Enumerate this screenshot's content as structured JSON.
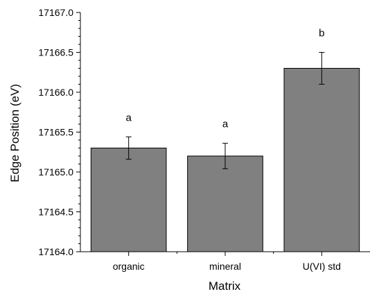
{
  "chart_data": {
    "type": "bar",
    "categories": [
      "organic",
      "mineral",
      "U(VI) std"
    ],
    "values": [
      17165.3,
      17165.2,
      17166.3
    ],
    "errors": [
      0.14,
      0.16,
      0.2
    ],
    "annotations": [
      "a",
      "a",
      "b"
    ],
    "xlabel": "Matrix",
    "ylabel": "Edge Position (eV)",
    "ylim": [
      17164.0,
      17167.0
    ],
    "yticks": [
      "17164.0",
      "17164.5",
      "17165.0",
      "17165.5",
      "17166.0",
      "17166.5",
      "17167.0"
    ],
    "grid": false,
    "colors": {
      "bar": "#808080",
      "bar_edge": "#000000",
      "axis": "#000000"
    }
  }
}
